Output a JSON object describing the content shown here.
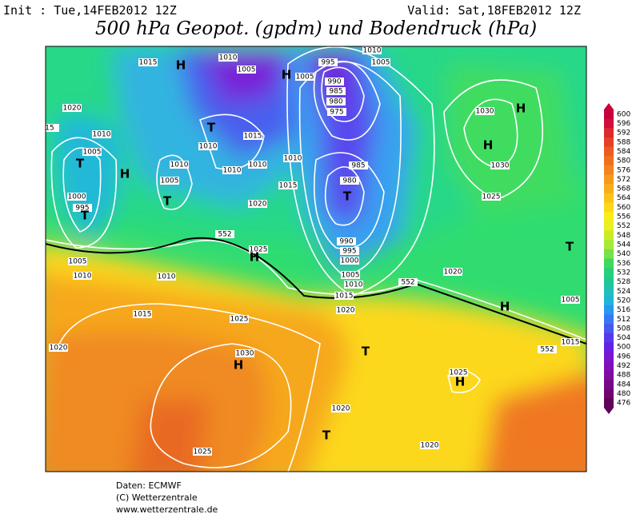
{
  "header": {
    "init": "Init : Tue,14FEB2012 12Z",
    "valid": "Valid: Sat,18FEB2012 12Z",
    "title": "500 hPa Geopot. (gpdm) und Bodendruck (hPa)"
  },
  "colorbar": {
    "labels": [
      600,
      596,
      592,
      588,
      584,
      580,
      576,
      572,
      568,
      564,
      560,
      556,
      552,
      548,
      544,
      540,
      536,
      532,
      528,
      524,
      520,
      516,
      512,
      508,
      504,
      500,
      496,
      492,
      488,
      484,
      480,
      476
    ],
    "colors": [
      "#c8003c",
      "#d0103a",
      "#dc2a30",
      "#e6402a",
      "#ee5a22",
      "#f07020",
      "#f48420",
      "#f69a1e",
      "#f8ae1c",
      "#fac21a",
      "#fcd81a",
      "#f8ec1a",
      "#e8f020",
      "#c8ec28",
      "#a8e838",
      "#78e048",
      "#40d860",
      "#28d07a",
      "#20c898",
      "#20c0b8",
      "#20b4d8",
      "#2898f0",
      "#3878f4",
      "#4858f0",
      "#5838ec",
      "#6820e0",
      "#7818d0",
      "#8010b8",
      "#800ca0",
      "#780888",
      "#700670",
      "#60045a"
    ]
  },
  "map": {
    "labels": [
      "1015",
      "1010",
      "1005",
      "1010",
      "1005",
      "995",
      "1005",
      "990",
      "985",
      "980",
      "975",
      "1020",
      "1010",
      "1005",
      "1010",
      "1005",
      "1000",
      "995",
      "1010",
      "1015",
      "1010",
      "1010",
      "1010",
      "1015",
      "1020",
      "985",
      "980",
      "990",
      "995",
      "1000",
      "1005",
      "1010",
      "1015",
      "1020",
      "1030",
      "1030",
      "1025",
      "1020",
      "1005",
      "1015",
      "1005",
      "1010",
      "1010",
      "1015",
      "1025",
      "1020",
      "1030",
      "1025",
      "1020",
      "1020",
      "1025",
      "1025",
      "552",
      "552",
      "552",
      "15"
    ],
    "symbols": [
      "H",
      "H",
      "T",
      "H",
      "H",
      "T",
      "H",
      "T",
      "T",
      "T",
      "H",
      "T",
      "H",
      "T",
      "H",
      "H",
      "T"
    ]
  },
  "footer": {
    "source": "Daten: ECMWF",
    "copyright": "(C) Wetterzentrale",
    "url": "www.wetterzentrale.de"
  }
}
